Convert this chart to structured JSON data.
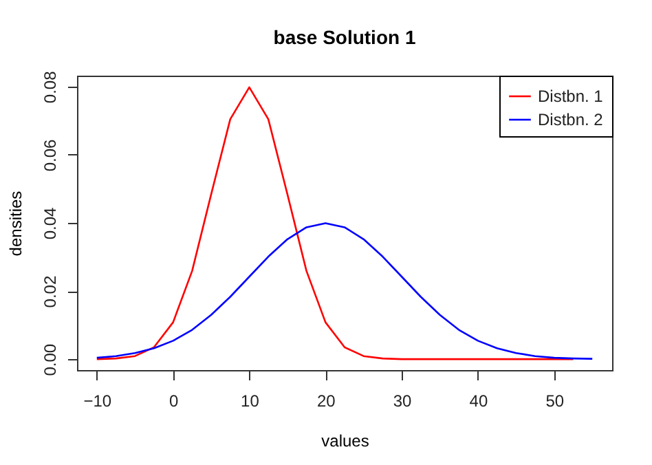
{
  "chart_data": {
    "type": "line",
    "title": "base Solution 1",
    "xlabel": "values",
    "ylabel": "densities",
    "series": [
      {
        "name": "Distbn. 1",
        "color": "#ff0000",
        "x": [
          -10,
          -7.5,
          -5,
          -2.5,
          0,
          2.5,
          5,
          7.5,
          10,
          12.5,
          15,
          17.5,
          20,
          22.5,
          25,
          27.5,
          30,
          32.5,
          35,
          37.5,
          40,
          42.5,
          45,
          47.5,
          50,
          52.5
        ],
        "values": [
          0.0,
          0.0002,
          0.0009,
          0.0035,
          0.0108,
          0.0259,
          0.0484,
          0.0704,
          0.0798,
          0.0704,
          0.0484,
          0.0259,
          0.0108,
          0.0035,
          0.0009,
          0.0002,
          0.0,
          0.0,
          0.0,
          0.0,
          0.0,
          0.0,
          0.0,
          0.0,
          0.0,
          0.0
        ]
      },
      {
        "name": "Distbn. 2",
        "color": "#0000ff",
        "x": [
          -10,
          -7.5,
          -5,
          -2.5,
          0,
          2.5,
          5,
          7.5,
          10,
          12.5,
          15,
          17.5,
          20,
          22.5,
          25,
          27.5,
          30,
          32.5,
          35,
          37.5,
          40,
          42.5,
          45,
          47.5,
          50,
          52.5,
          55
        ],
        "values": [
          0.0004,
          0.0009,
          0.0018,
          0.0032,
          0.0054,
          0.0086,
          0.013,
          0.0183,
          0.0242,
          0.0301,
          0.0352,
          0.0387,
          0.0399,
          0.0387,
          0.0352,
          0.0301,
          0.0242,
          0.0183,
          0.013,
          0.0086,
          0.0054,
          0.0032,
          0.0018,
          0.0009,
          0.0004,
          0.0002,
          0.0001
        ]
      }
    ],
    "xlim": [
      -12.6,
      57.6
    ],
    "xticks": [
      -10,
      0,
      10,
      20,
      30,
      40,
      50
    ],
    "ylim": [
      -0.0032,
      0.0832
    ],
    "yticks": [
      {
        "value": 0,
        "label": "0.00"
      },
      {
        "value": 0.02,
        "label": "0.02"
      },
      {
        "value": 0.04,
        "label": "0.04"
      },
      {
        "value": 0.06,
        "label": "0.06"
      },
      {
        "value": 0.08,
        "label": "0.08"
      }
    ],
    "grid": false,
    "legend": "top right",
    "line_style": "solid"
  }
}
